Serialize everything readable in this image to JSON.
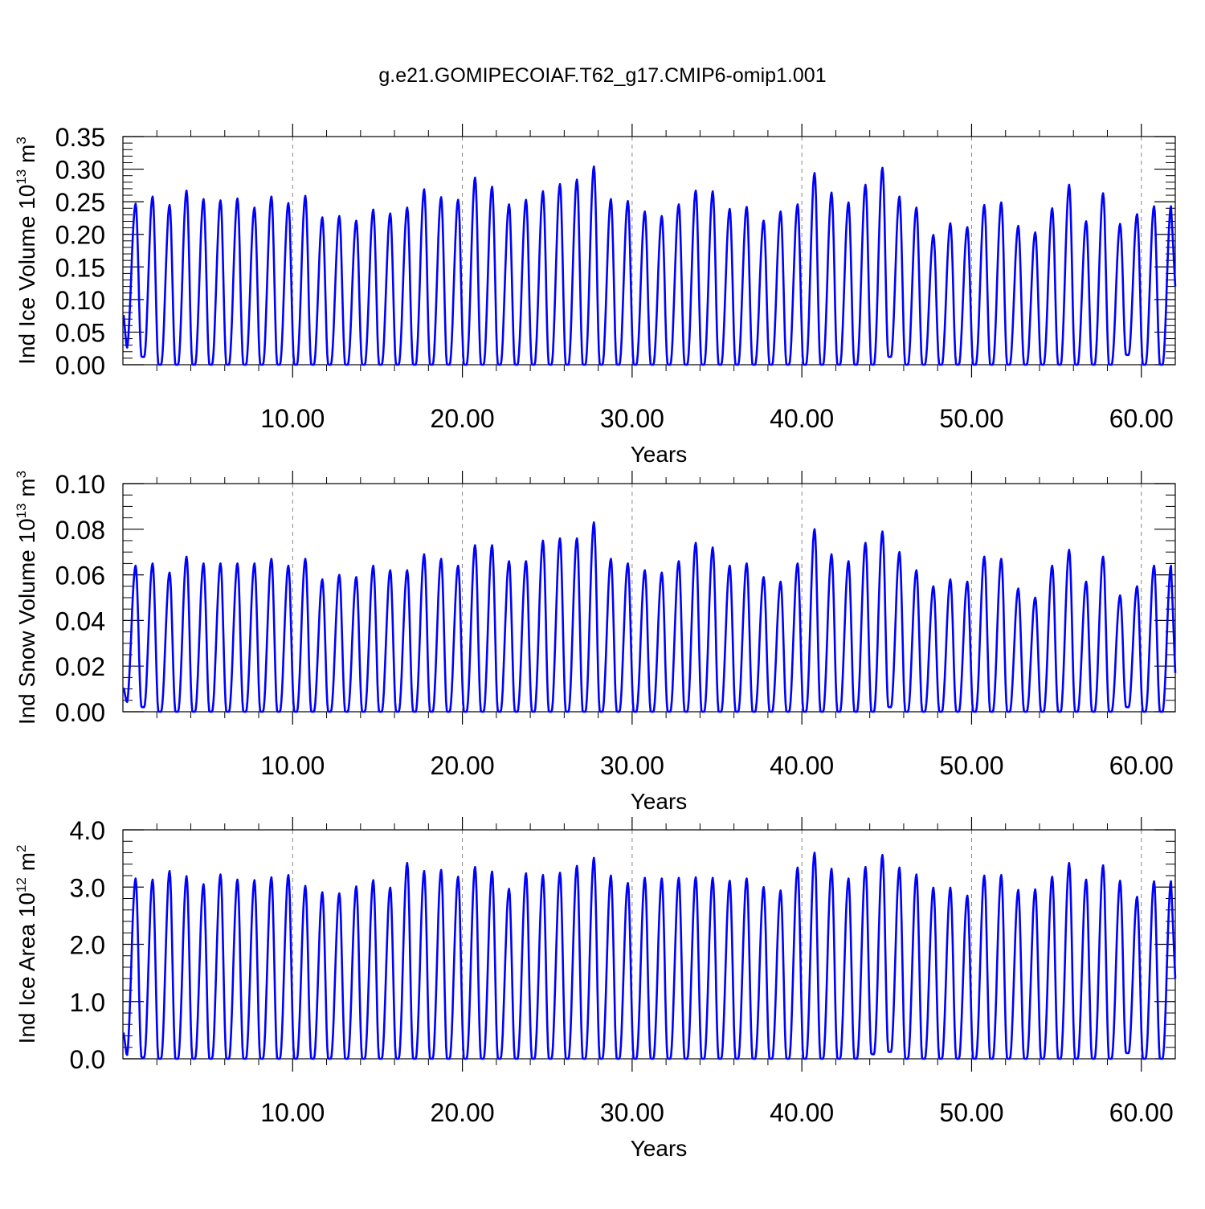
{
  "figure_title": "g.e21.GOMIPECOIAF.T62_g17.CMIP6-omip1.001",
  "chart_data": [
    {
      "type": "line",
      "ylabel": "Ind Ice Volume 10",
      "ylabel_exponent": "13",
      "ylabel_unit": " m",
      "ylabel_unit_exponent": "3",
      "xlabel": "Years",
      "xlim": [
        0,
        62
      ],
      "ylim": [
        0,
        0.35
      ],
      "x_ticks": [
        "10.00",
        "20.00",
        "30.00",
        "40.00",
        "50.00",
        "60.00"
      ],
      "y_ticks": [
        "0.00",
        "0.05",
        "0.10",
        "0.15",
        "0.20",
        "0.25",
        "0.30",
        "0.35"
      ],
      "grid": "vertical dashed at major x ticks",
      "series": [
        {
          "color": "#0000ff",
          "start_value": 0.088,
          "end_value": 0.12,
          "annual_peaks": [
            0.247,
            0.258,
            0.245,
            0.267,
            0.254,
            0.252,
            0.255,
            0.241,
            0.258,
            0.248,
            0.259,
            0.226,
            0.228,
            0.221,
            0.238,
            0.232,
            0.241,
            0.269,
            0.257,
            0.253,
            0.287,
            0.273,
            0.246,
            0.253,
            0.266,
            0.277,
            0.284,
            0.304,
            0.254,
            0.251,
            0.235,
            0.228,
            0.246,
            0.267,
            0.266,
            0.239,
            0.242,
            0.221,
            0.235,
            0.246,
            0.294,
            0.264,
            0.249,
            0.276,
            0.302,
            0.258,
            0.241,
            0.199,
            0.217,
            0.211,
            0.245,
            0.249,
            0.213,
            0.203,
            0.24,
            0.276,
            0.22,
            0.263,
            0.216,
            0.231,
            0.243
          ],
          "annual_minima": [
            0.025,
            0.012,
            0.0,
            0.0,
            0.0,
            0.0,
            0.0,
            0.0,
            0.0,
            0.0,
            0.0,
            0.0,
            0.0,
            0.0,
            0.0,
            0.0,
            0.0,
            0.0,
            0.0,
            0.0,
            0.0,
            0.0,
            0.0,
            0.0,
            0.0,
            0.0,
            0.0,
            0.0,
            0.0,
            0.0,
            0.0,
            0.0,
            0.0,
            0.0,
            0.0,
            0.0,
            0.0,
            0.0,
            0.0,
            0.0,
            0.0,
            0.0,
            0.0,
            0.0,
            0.0,
            0.012,
            0.0,
            0.0,
            0.0,
            0.0,
            0.0,
            0.0,
            0.0,
            0.0,
            0.0,
            0.0,
            0.0,
            0.0,
            0.0,
            0.015,
            0.0
          ]
        }
      ]
    },
    {
      "type": "line",
      "ylabel": "Ind Snow Volume 10",
      "ylabel_exponent": "13",
      "ylabel_unit": " m",
      "ylabel_unit_exponent": "3",
      "xlabel": "Years",
      "xlim": [
        0,
        62
      ],
      "ylim": [
        0,
        0.1
      ],
      "x_ticks": [
        "10.00",
        "20.00",
        "30.00",
        "40.00",
        "50.00",
        "60.00"
      ],
      "y_ticks": [
        "0.00",
        "0.02",
        "0.04",
        "0.06",
        "0.08",
        "0.10"
      ],
      "grid": "vertical dashed at major x ticks",
      "series": [
        {
          "color": "#0000ff",
          "start_value": 0.012,
          "end_value": 0.017,
          "annual_peaks": [
            0.064,
            0.065,
            0.061,
            0.068,
            0.065,
            0.065,
            0.065,
            0.065,
            0.067,
            0.064,
            0.067,
            0.058,
            0.06,
            0.059,
            0.064,
            0.062,
            0.062,
            0.069,
            0.067,
            0.064,
            0.073,
            0.073,
            0.066,
            0.066,
            0.075,
            0.076,
            0.076,
            0.083,
            0.067,
            0.065,
            0.062,
            0.061,
            0.066,
            0.074,
            0.072,
            0.064,
            0.065,
            0.059,
            0.057,
            0.065,
            0.08,
            0.069,
            0.066,
            0.074,
            0.079,
            0.07,
            0.062,
            0.055,
            0.058,
            0.057,
            0.068,
            0.067,
            0.054,
            0.05,
            0.064,
            0.071,
            0.057,
            0.068,
            0.051,
            0.055,
            0.064
          ],
          "annual_minima": [
            0.004,
            0.002,
            0.0,
            0.0,
            0.0,
            0.0,
            0.0,
            0.0,
            0.0,
            0.0,
            0.0,
            0.0,
            0.0,
            0.0,
            0.0,
            0.0,
            0.0,
            0.0,
            0.0,
            0.0,
            0.0,
            0.0,
            0.0,
            0.0,
            0.0,
            0.0,
            0.0,
            0.0,
            0.0,
            0.0,
            0.0,
            0.0,
            0.0,
            0.0,
            0.0,
            0.0,
            0.0,
            0.0,
            0.0,
            0.0,
            0.0,
            0.0,
            0.0,
            0.0,
            0.0,
            0.002,
            0.0,
            0.0,
            0.0,
            0.0,
            0.0,
            0.0,
            0.0,
            0.0,
            0.0,
            0.0,
            0.0,
            0.0,
            0.0,
            0.002,
            0.0
          ]
        }
      ]
    },
    {
      "type": "line",
      "ylabel": "Ind Ice Area 10",
      "ylabel_exponent": "12",
      "ylabel_unit": " m",
      "ylabel_unit_exponent": "2",
      "xlabel": "Years",
      "xlim": [
        0,
        62
      ],
      "ylim": [
        0,
        4.0
      ],
      "x_ticks": [
        "10.00",
        "20.00",
        "30.00",
        "40.00",
        "50.00",
        "60.00"
      ],
      "y_ticks": [
        "0.0",
        "1.0",
        "2.0",
        "3.0",
        "4.0"
      ],
      "grid": "vertical dashed at major x ticks",
      "series": [
        {
          "color": "#0000ff",
          "start_value": 0.55,
          "end_value": 1.4,
          "annual_peaks": [
            3.15,
            3.13,
            3.28,
            3.19,
            3.05,
            3.22,
            3.13,
            3.12,
            3.17,
            3.21,
            3.02,
            2.91,
            2.89,
            3.01,
            3.12,
            2.99,
            3.42,
            3.28,
            3.3,
            3.18,
            3.35,
            3.27,
            2.97,
            3.24,
            3.21,
            3.25,
            3.37,
            3.51,
            3.2,
            3.07,
            3.16,
            3.15,
            3.16,
            3.17,
            3.16,
            3.11,
            3.15,
            3.0,
            2.94,
            3.34,
            3.6,
            3.32,
            3.15,
            3.35,
            3.56,
            3.34,
            3.22,
            2.99,
            2.99,
            2.85,
            3.2,
            3.21,
            2.95,
            2.96,
            3.18,
            3.42,
            3.13,
            3.38,
            3.11,
            2.83,
            3.1
          ],
          "annual_minima": [
            0.05,
            0.02,
            0.0,
            0.0,
            0.0,
            0.0,
            0.0,
            0.0,
            0.0,
            0.0,
            0.0,
            0.0,
            0.0,
            0.0,
            0.0,
            0.0,
            0.0,
            0.0,
            0.0,
            0.0,
            0.0,
            0.0,
            0.0,
            0.0,
            0.0,
            0.0,
            0.0,
            0.0,
            0.0,
            0.0,
            0.0,
            0.0,
            0.0,
            0.0,
            0.0,
            0.0,
            0.0,
            0.0,
            0.0,
            0.0,
            0.0,
            0.0,
            0.0,
            0.0,
            0.08,
            0.12,
            0.0,
            0.0,
            0.0,
            0.0,
            0.0,
            0.0,
            0.0,
            0.0,
            0.0,
            0.0,
            0.0,
            0.0,
            0.0,
            0.1,
            0.0
          ]
        }
      ]
    }
  ]
}
